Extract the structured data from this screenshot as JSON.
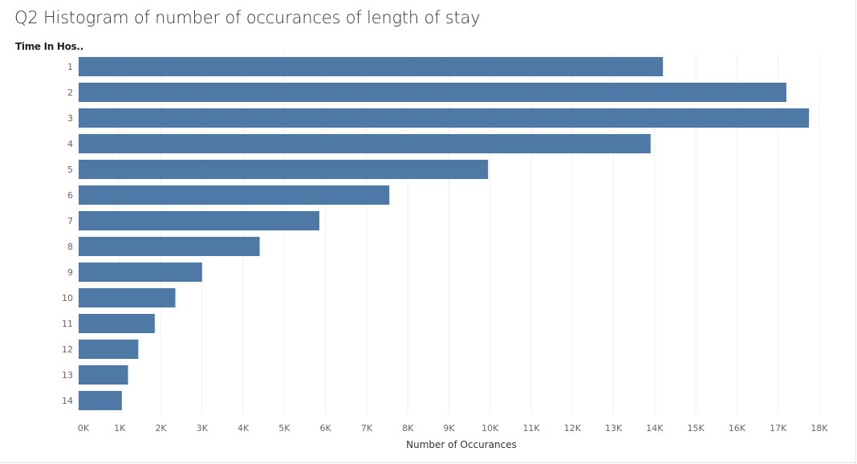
{
  "title": "Q2 Histogram of number of occurances of length of stay",
  "chart_data": {
    "type": "bar",
    "orientation": "horizontal",
    "title": "Q2 Histogram of number of occurances of length of stay",
    "ylabel": "Time In Hos..",
    "xlabel": "Number of Occurances",
    "categories": [
      "1",
      "2",
      "3",
      "4",
      "5",
      "6",
      "7",
      "8",
      "9",
      "10",
      "11",
      "12",
      "13",
      "14"
    ],
    "values": [
      14200,
      17200,
      17750,
      13900,
      9950,
      7550,
      5850,
      4400,
      3000,
      2350,
      1850,
      1450,
      1200,
      1050
    ],
    "xlim": [
      0,
      18000
    ],
    "x_ticks": [
      "0K",
      "1K",
      "2K",
      "3K",
      "4K",
      "5K",
      "6K",
      "7K",
      "8K",
      "9K",
      "10K",
      "11K",
      "12K",
      "13K",
      "14K",
      "15K",
      "16K",
      "17K",
      "18K"
    ],
    "grid": "vertical",
    "legend": "none",
    "bar_color": "#4e79a7"
  }
}
